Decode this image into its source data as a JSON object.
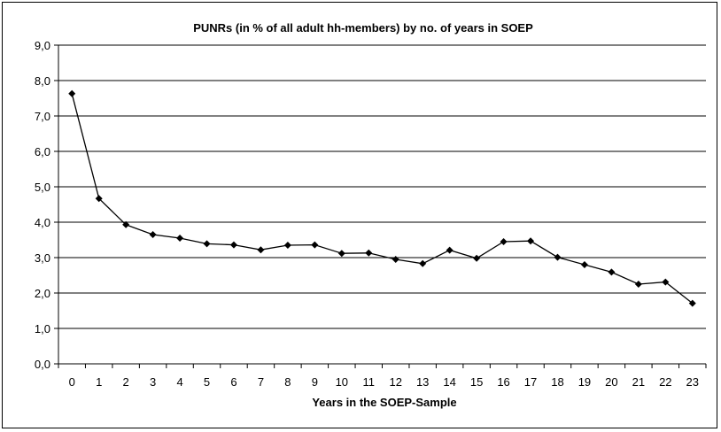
{
  "chart_data": {
    "type": "line",
    "title": "PUNRs (in % of all adult hh-members) by no. of years in SOEP",
    "xlabel": "Years in the SOEP-Sample",
    "ylabel": "",
    "ylim": [
      0,
      9
    ],
    "y_ticks": [
      "0,0",
      "1,0",
      "2,0",
      "3,0",
      "4,0",
      "5,0",
      "6,0",
      "7,0",
      "8,0",
      "9,0"
    ],
    "grid": true,
    "legend": "none",
    "categories": [
      "0",
      "1",
      "2",
      "3",
      "4",
      "5",
      "6",
      "7",
      "8",
      "9",
      "10",
      "11",
      "12",
      "13",
      "14",
      "15",
      "16",
      "17",
      "18",
      "19",
      "20",
      "21",
      "22",
      "23"
    ],
    "series": [
      {
        "values": [
          7.63,
          4.67,
          3.93,
          3.65,
          3.55,
          3.39,
          3.36,
          3.22,
          3.35,
          3.36,
          3.12,
          3.13,
          2.95,
          2.83,
          3.21,
          2.98,
          3.45,
          3.47,
          3.01,
          2.8,
          2.59,
          2.25,
          2.31,
          1.71
        ]
      }
    ],
    "colors": {
      "line": "#000000",
      "grid": "#000000",
      "marker": "#000000"
    }
  }
}
